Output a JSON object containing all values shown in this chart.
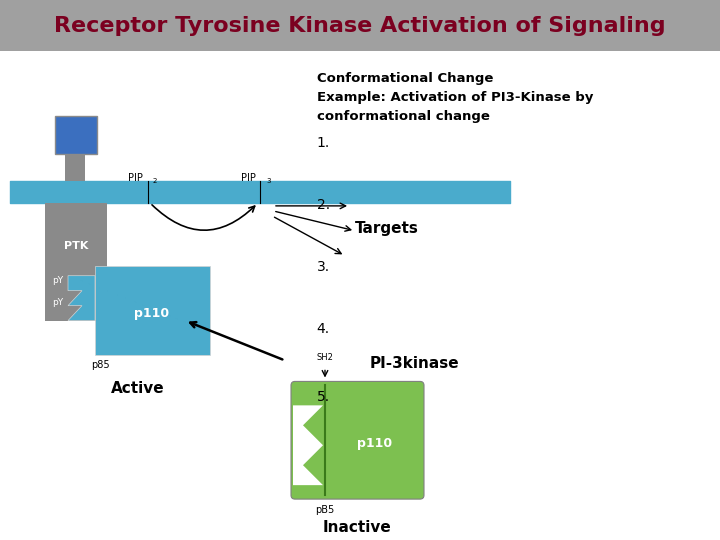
{
  "title": "Receptor Tyrosine Kinase Activation of Signaling",
  "title_color": "#7B0020",
  "title_bg": "#A0A0A0",
  "main_bg": "#FFFFFF",
  "subtitle_line1": "Conformational Change",
  "subtitle_line2": "Example: Activation of PI3-Kinase by",
  "subtitle_line3": "conformational change",
  "numbered_items": [
    "1.",
    "2.",
    "3.",
    "4.",
    "5."
  ],
  "membrane_color": "#4AABCC",
  "ptk_color": "#8A8A8A",
  "blue_square_color": "#3B6FBF",
  "p110_active_color": "#4AABCC",
  "p110_inactive_color": "#7DC050",
  "arrow_color": "#000000",
  "label_white": "#FFFFFF",
  "label_black": "#000000"
}
